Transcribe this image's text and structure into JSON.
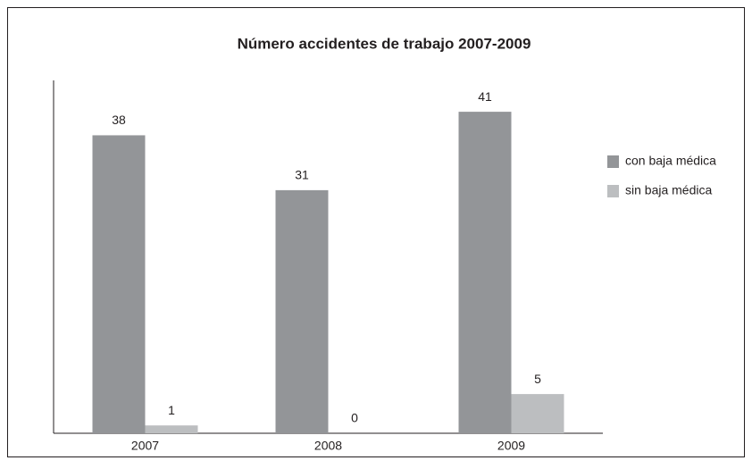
{
  "chart_data": {
    "type": "bar",
    "title": "Número accidentes de trabajo 2007-2009",
    "categories": [
      "2007",
      "2008",
      "2009"
    ],
    "series": [
      {
        "name": "con baja médica",
        "color": "#939598",
        "values": [
          38,
          31,
          41
        ]
      },
      {
        "name": "sin baja médica",
        "color": "#bcbec0",
        "values": [
          1,
          0,
          5
        ]
      }
    ],
    "ylim": [
      0,
      45
    ],
    "legend": "right"
  }
}
